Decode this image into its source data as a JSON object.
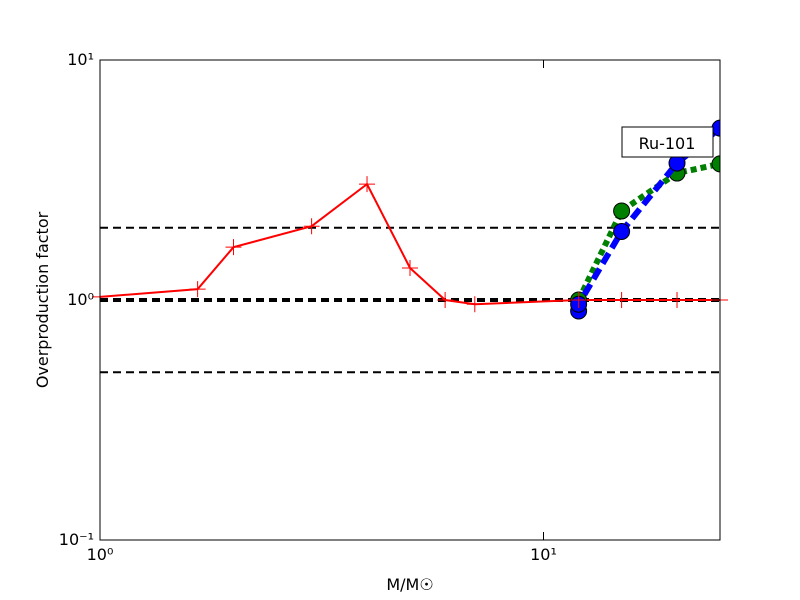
{
  "chart_data": {
    "type": "line",
    "xlabel": "M/M☉",
    "ylabel": "Overproduction factor",
    "annotation": "Ru-101",
    "xscale": "log",
    "yscale": "log",
    "xlim": [
      1,
      25
    ],
    "ylim": [
      0.1,
      10
    ],
    "xticks": [
      {
        "value": 1,
        "label": "10⁰"
      },
      {
        "value": 10,
        "label": "10¹"
      }
    ],
    "yticks": [
      {
        "value": 0.1,
        "label": "10⁻¹"
      },
      {
        "value": 1,
        "label": "10⁰"
      },
      {
        "value": 10,
        "label": "10¹"
      }
    ],
    "hlines": [
      {
        "value": 2,
        "width": 2
      },
      {
        "value": 1,
        "width": 4
      },
      {
        "value": 0.5,
        "width": 2
      }
    ],
    "series": [
      {
        "color": "#ff0000",
        "linestyle": "solid",
        "width": 2,
        "marker": "plus",
        "x": [
          1,
          1.66,
          2,
          3,
          4,
          5,
          6,
          7,
          12,
          15,
          20,
          25
        ],
        "values": [
          1.03,
          1.11,
          1.66,
          2.03,
          3.04,
          1.36,
          1.0,
          0.96,
          1.0,
          1.0,
          1.0,
          1.0
        ]
      },
      {
        "color": "#008000",
        "linestyle": "dotted",
        "width": 6,
        "marker": "circle",
        "x": [
          12,
          15,
          20,
          25
        ],
        "values": [
          1.0,
          2.35,
          3.38,
          3.69
        ]
      },
      {
        "color": "#0000ff",
        "linestyle": "dashed",
        "width": 6,
        "marker": "circle",
        "x": [
          12,
          12,
          15,
          20,
          25
        ],
        "values": [
          0.9,
          0.96,
          1.93,
          3.72,
          5.2
        ]
      }
    ]
  }
}
